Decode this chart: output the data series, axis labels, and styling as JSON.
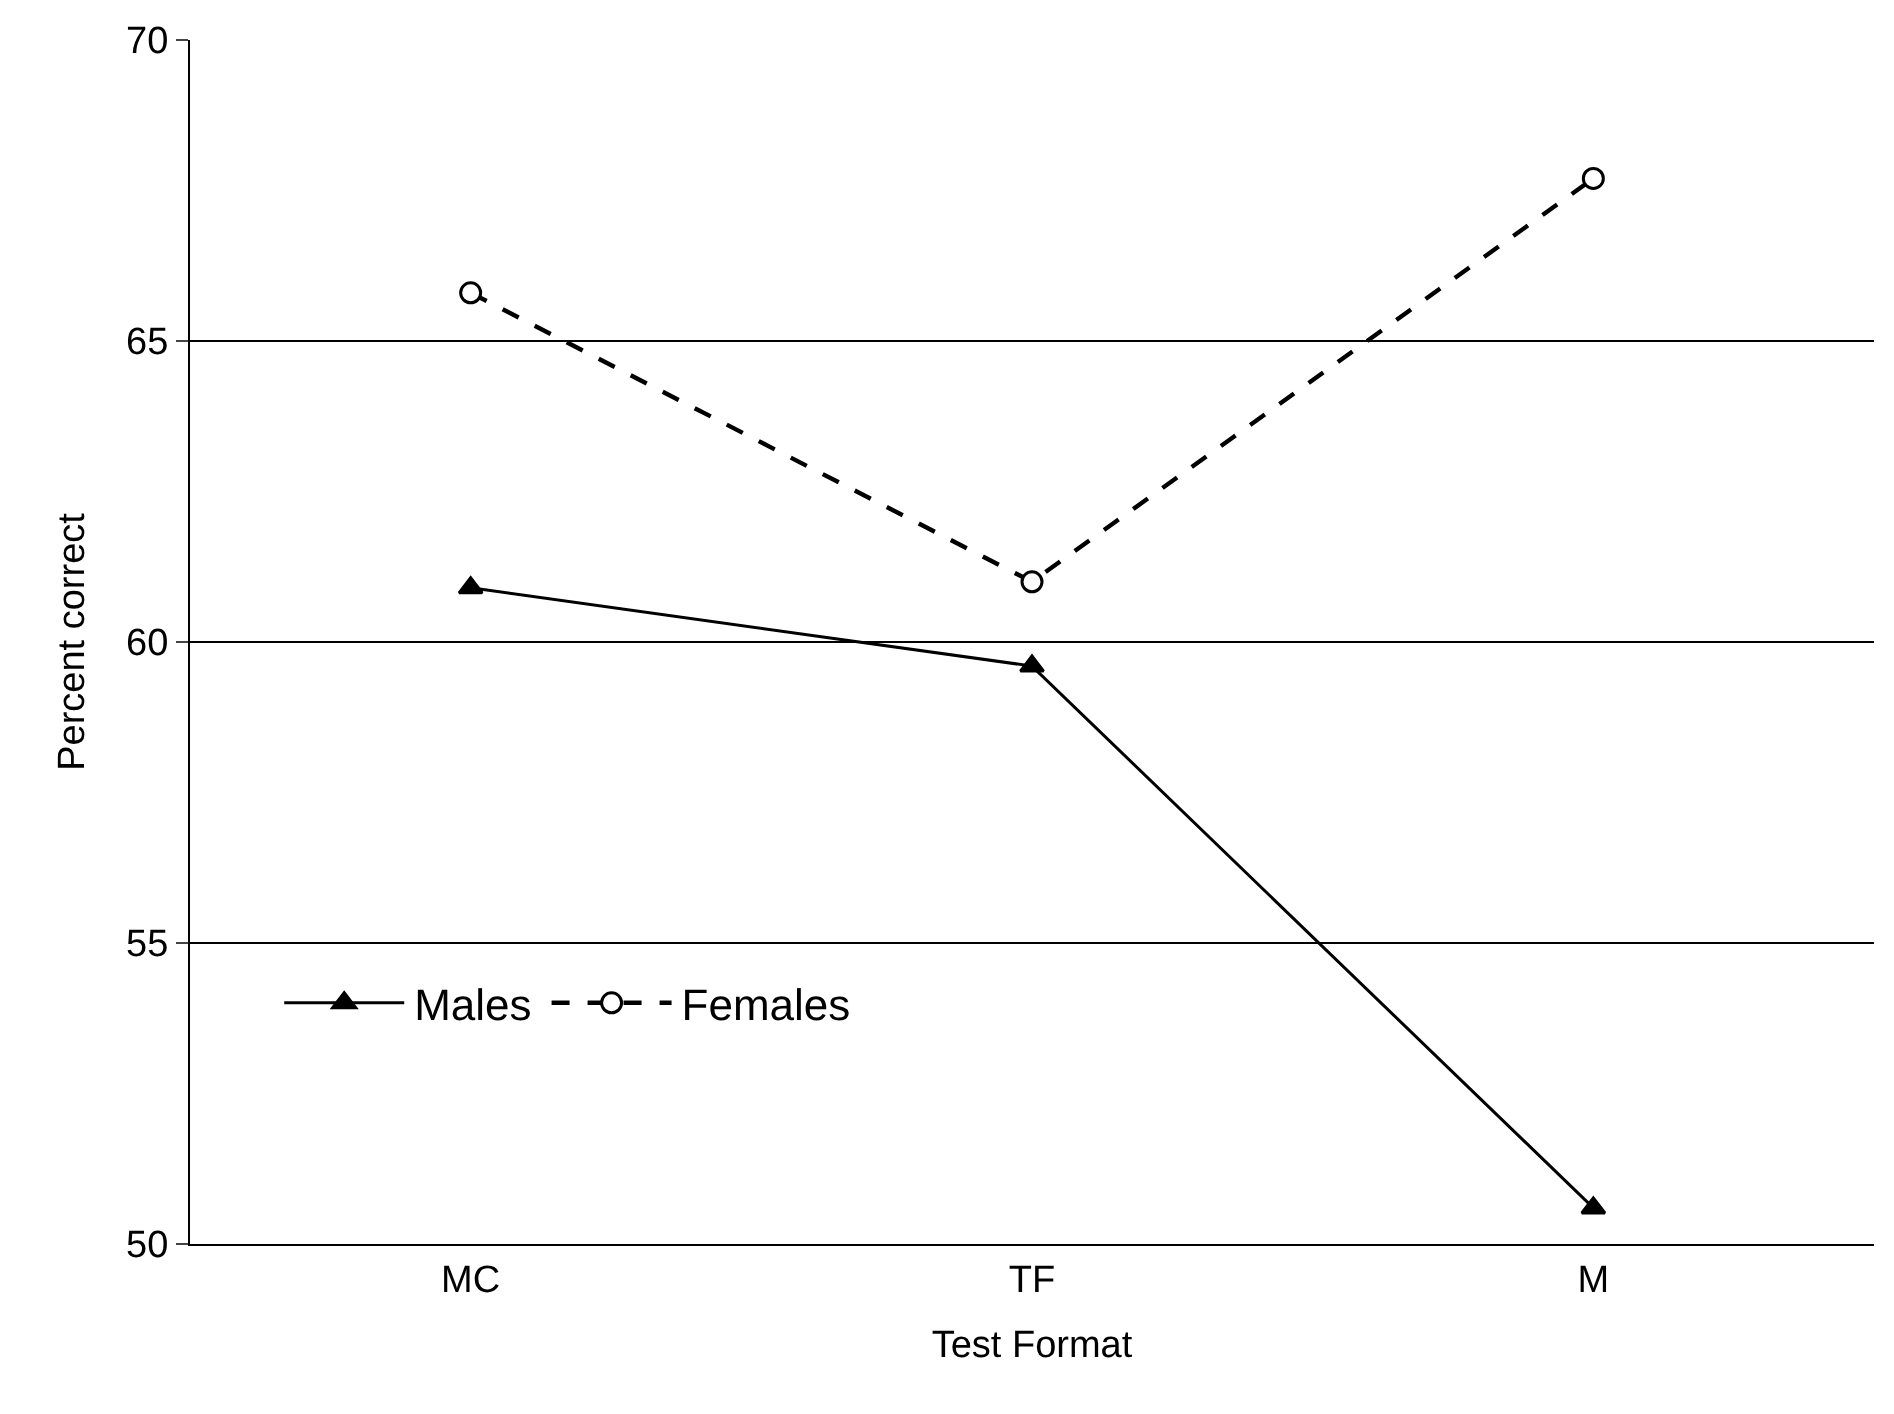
{
  "chart_data": {
    "type": "line",
    "xlabel": "Test Format",
    "ylabel": "Percent correct",
    "categories": [
      "MC",
      "TF",
      "M"
    ],
    "series": [
      {
        "name": "Males",
        "color": "#000000",
        "values": [
          60.9,
          59.6,
          50.6
        ],
        "marker": "triangle",
        "line_style": "solid"
      },
      {
        "name": "Females",
        "color": "#000000",
        "values": [
          65.8,
          61.0,
          67.7
        ],
        "marker": "circle",
        "line_style": "dashed"
      }
    ],
    "ylim": [
      50,
      70
    ],
    "yticks": [
      50,
      55,
      60,
      65,
      70
    ],
    "grid": "y",
    "legend": "bottom left"
  }
}
